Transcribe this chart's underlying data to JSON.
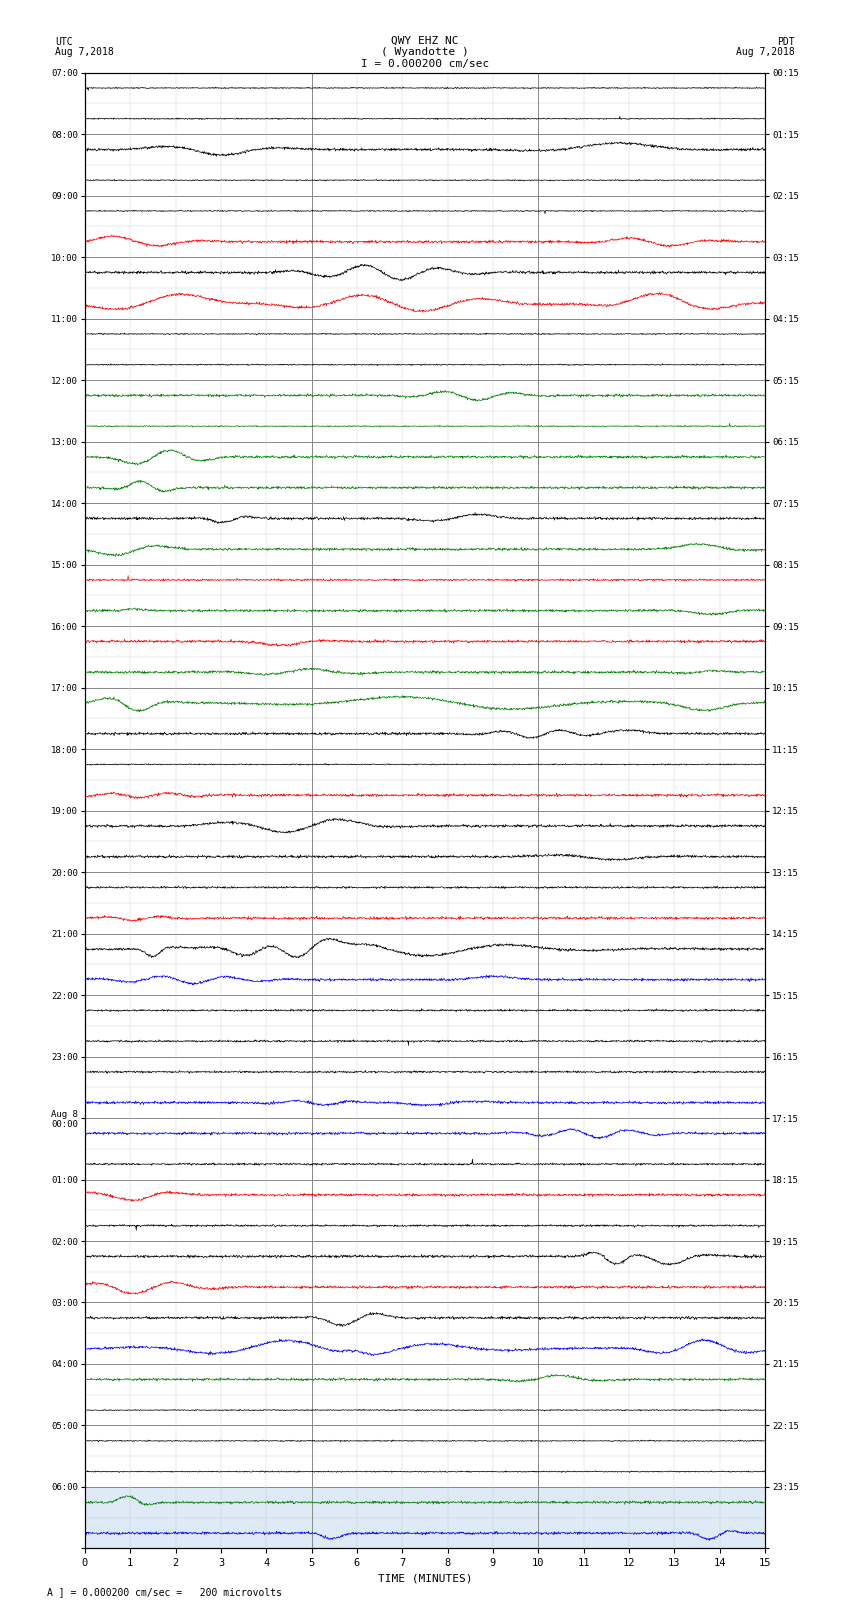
{
  "title_line1": "QWY EHZ NC",
  "title_line2": "( Wyandotte )",
  "title_line3": "I = 0.000200 cm/sec",
  "left_label_line1": "UTC",
  "left_label_line2": "Aug 7,2018",
  "right_label_line1": "PDT",
  "right_label_line2": "Aug 7,2018",
  "xlabel": "TIME (MINUTES)",
  "bottom_note": "A ] = 0.000200 cm/sec =   200 microvolts",
  "utc_labels": [
    "07:00",
    "08:00",
    "09:00",
    "10:00",
    "11:00",
    "12:00",
    "13:00",
    "14:00",
    "15:00",
    "16:00",
    "17:00",
    "18:00",
    "19:00",
    "20:00",
    "21:00",
    "22:00",
    "23:00",
    "Aug 8\n00:00",
    "01:00",
    "02:00",
    "03:00",
    "04:00",
    "05:00",
    "06:00"
  ],
  "pdt_labels": [
    "00:15",
    "01:15",
    "02:15",
    "03:15",
    "04:15",
    "05:15",
    "06:15",
    "07:15",
    "08:15",
    "09:15",
    "10:15",
    "11:15",
    "12:15",
    "13:15",
    "14:15",
    "15:15",
    "16:15",
    "17:15",
    "18:15",
    "19:15",
    "20:15",
    "21:15",
    "22:15",
    "23:15"
  ],
  "n_hours": 24,
  "sub_rows": 2,
  "n_minutes": 15,
  "background_color": "#ffffff",
  "grid_color": "#888888",
  "minor_grid_color": "#cccccc",
  "highlight_color": "#c8dcf0"
}
